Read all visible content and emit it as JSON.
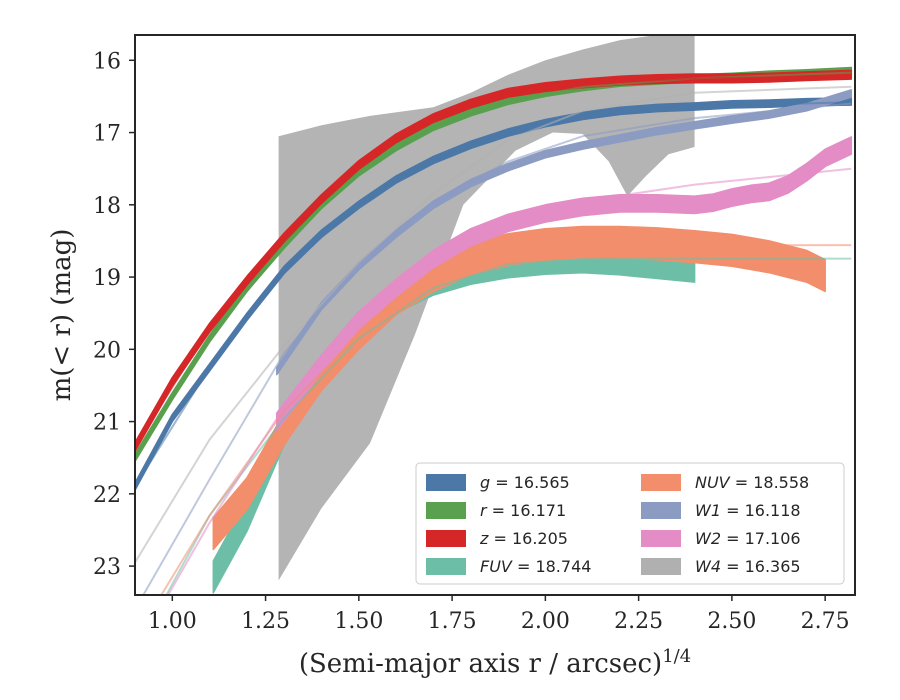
{
  "chart_data": {
    "type": "line",
    "xlabel": "(Semi-major axis r / arcsec)",
    "xlabel_sup": "1/4",
    "ylabel": "m(< r) (mag)",
    "xlim": [
      0.9,
      2.83
    ],
    "ylim": [
      23.4,
      15.65
    ],
    "y_inverted": true,
    "grid": false,
    "legend_placement": "lower-right",
    "legend_columns": 2,
    "x_ticks": [
      "1.00",
      "1.25",
      "1.50",
      "1.75",
      "2.00",
      "2.25",
      "2.50",
      "2.75"
    ],
    "y_ticks": [
      "16",
      "17",
      "18",
      "19",
      "20",
      "21",
      "22",
      "23"
    ],
    "series": [
      {
        "name": "g = 16.565",
        "label_var": "g",
        "label_val": "16.565",
        "color": "#4c78a8",
        "band_width": 0.05,
        "data": [
          [
            0.9,
            21.9
          ],
          [
            1.0,
            20.95
          ],
          [
            1.1,
            20.25
          ],
          [
            1.2,
            19.55
          ],
          [
            1.3,
            18.9
          ],
          [
            1.4,
            18.4
          ],
          [
            1.5,
            18.0
          ],
          [
            1.6,
            17.65
          ],
          [
            1.7,
            17.38
          ],
          [
            1.8,
            17.17
          ],
          [
            1.9,
            17.0
          ],
          [
            2.0,
            16.87
          ],
          [
            2.1,
            16.77
          ],
          [
            2.2,
            16.7
          ],
          [
            2.3,
            16.66
          ],
          [
            2.4,
            16.64
          ],
          [
            2.5,
            16.61
          ],
          [
            2.6,
            16.6
          ],
          [
            2.7,
            16.58
          ],
          [
            2.82,
            16.57
          ]
        ],
        "model": [
          [
            0.9,
            21.9
          ],
          [
            1.1,
            20.25
          ],
          [
            1.3,
            18.9
          ],
          [
            1.5,
            18.0
          ],
          [
            1.7,
            17.38
          ],
          [
            1.9,
            17.0
          ],
          [
            2.1,
            16.77
          ],
          [
            2.4,
            16.64
          ],
          [
            2.82,
            16.58
          ]
        ]
      },
      {
        "name": "r = 16.171",
        "label_var": "r",
        "label_val": "16.171",
        "color": "#59a14f",
        "band_width": 0.05,
        "data": [
          [
            0.9,
            21.5
          ],
          [
            1.0,
            20.65
          ],
          [
            1.1,
            19.85
          ],
          [
            1.2,
            19.15
          ],
          [
            1.3,
            18.55
          ],
          [
            1.4,
            18.0
          ],
          [
            1.5,
            17.55
          ],
          [
            1.6,
            17.2
          ],
          [
            1.7,
            16.92
          ],
          [
            1.8,
            16.72
          ],
          [
            1.9,
            16.56
          ],
          [
            2.0,
            16.45
          ],
          [
            2.1,
            16.37
          ],
          [
            2.2,
            16.31
          ],
          [
            2.3,
            16.28
          ],
          [
            2.4,
            16.25
          ],
          [
            2.5,
            16.23
          ],
          [
            2.6,
            16.2
          ],
          [
            2.7,
            16.18
          ],
          [
            2.82,
            16.15
          ]
        ],
        "model": [
          [
            0.9,
            21.5
          ],
          [
            1.1,
            19.85
          ],
          [
            1.3,
            18.55
          ],
          [
            1.5,
            17.55
          ],
          [
            1.7,
            16.92
          ],
          [
            1.9,
            16.56
          ],
          [
            2.1,
            16.37
          ],
          [
            2.4,
            16.25
          ],
          [
            2.82,
            16.17
          ]
        ]
      },
      {
        "name": "z = 16.205",
        "label_var": "z",
        "label_val": "16.205",
        "color": "#d62728",
        "band_width": 0.06,
        "data": [
          [
            0.9,
            21.35
          ],
          [
            1.0,
            20.45
          ],
          [
            1.1,
            19.7
          ],
          [
            1.2,
            19.05
          ],
          [
            1.3,
            18.45
          ],
          [
            1.4,
            17.92
          ],
          [
            1.5,
            17.45
          ],
          [
            1.6,
            17.08
          ],
          [
            1.7,
            16.8
          ],
          [
            1.8,
            16.6
          ],
          [
            1.9,
            16.45
          ],
          [
            2.0,
            16.37
          ],
          [
            2.1,
            16.32
          ],
          [
            2.2,
            16.28
          ],
          [
            2.3,
            16.26
          ],
          [
            2.4,
            16.25
          ],
          [
            2.5,
            16.25
          ],
          [
            2.6,
            16.24
          ],
          [
            2.7,
            16.22
          ],
          [
            2.82,
            16.2
          ]
        ],
        "model": [
          [
            0.9,
            21.35
          ],
          [
            1.1,
            19.7
          ],
          [
            1.3,
            18.45
          ],
          [
            1.5,
            17.45
          ],
          [
            1.7,
            16.8
          ],
          [
            1.9,
            16.45
          ],
          [
            2.1,
            16.32
          ],
          [
            2.4,
            16.25
          ],
          [
            2.82,
            16.22
          ]
        ]
      },
      {
        "name": "FUV = 18.744",
        "label_var": "FUV",
        "label_val": "18.744",
        "color": "#6cbfa6",
        "band_width": 0.22,
        "data": [
          [
            1.11,
            23.15
          ],
          [
            1.2,
            22.3
          ],
          [
            1.3,
            21.1
          ],
          [
            1.4,
            20.3
          ],
          [
            1.5,
            19.7
          ],
          [
            1.6,
            19.28
          ],
          [
            1.7,
            19.03
          ],
          [
            1.8,
            18.88
          ],
          [
            1.9,
            18.79
          ],
          [
            2.0,
            18.74
          ],
          [
            2.1,
            18.72
          ],
          [
            2.2,
            18.75
          ],
          [
            2.3,
            18.8
          ],
          [
            2.4,
            18.85
          ]
        ],
        "model": [
          [
            0.9,
            24.2
          ],
          [
            1.1,
            22.3
          ],
          [
            1.3,
            20.95
          ],
          [
            1.5,
            19.85
          ],
          [
            1.7,
            19.15
          ],
          [
            1.9,
            18.82
          ],
          [
            2.1,
            18.75
          ],
          [
            2.4,
            18.744
          ],
          [
            2.82,
            18.744
          ]
        ]
      },
      {
        "name": "NUV = 18.558",
        "label_var": "NUV",
        "label_val": "18.558",
        "color": "#f28e6b",
        "band_width": 0.22,
        "data": [
          [
            1.11,
            22.55
          ],
          [
            1.2,
            22.0
          ],
          [
            1.3,
            21.1
          ],
          [
            1.4,
            20.35
          ],
          [
            1.5,
            19.78
          ],
          [
            1.6,
            19.3
          ],
          [
            1.7,
            18.98
          ],
          [
            1.8,
            18.75
          ],
          [
            1.9,
            18.62
          ],
          [
            2.0,
            18.55
          ],
          [
            2.1,
            18.52
          ],
          [
            2.2,
            18.52
          ],
          [
            2.3,
            18.54
          ],
          [
            2.4,
            18.58
          ],
          [
            2.5,
            18.63
          ],
          [
            2.6,
            18.72
          ],
          [
            2.7,
            18.85
          ],
          [
            2.75,
            18.98
          ]
        ],
        "model": [
          [
            0.9,
            24.0
          ],
          [
            1.1,
            22.3
          ],
          [
            1.3,
            20.85
          ],
          [
            1.5,
            19.8
          ],
          [
            1.7,
            19.1
          ],
          [
            1.9,
            18.72
          ],
          [
            2.1,
            18.6
          ],
          [
            2.4,
            18.56
          ],
          [
            2.82,
            18.558
          ]
        ]
      },
      {
        "name": "W1 = 16.118",
        "label_var": "W1",
        "label_val": "16.118",
        "color": "#8c9bc2",
        "band_width": 0.05,
        "data": [
          [
            1.28,
            20.3
          ],
          [
            1.4,
            19.4
          ],
          [
            1.5,
            18.85
          ],
          [
            1.6,
            18.4
          ],
          [
            1.7,
            18.0
          ],
          [
            1.8,
            17.7
          ],
          [
            1.9,
            17.48
          ],
          [
            2.0,
            17.3
          ],
          [
            2.1,
            17.18
          ],
          [
            2.2,
            17.08
          ],
          [
            2.3,
            16.98
          ],
          [
            2.4,
            16.9
          ],
          [
            2.5,
            16.82
          ],
          [
            2.6,
            16.75
          ],
          [
            2.7,
            16.65
          ],
          [
            2.82,
            16.46
          ]
        ],
        "model": [
          [
            0.9,
            23.6
          ],
          [
            1.1,
            21.8
          ],
          [
            1.3,
            20.05
          ],
          [
            1.5,
            18.8
          ],
          [
            1.7,
            17.95
          ],
          [
            1.9,
            17.4
          ],
          [
            2.1,
            17.05
          ],
          [
            2.4,
            16.8
          ],
          [
            2.82,
            16.6
          ]
        ]
      },
      {
        "name": "W2 = 17.106",
        "label_var": "W2",
        "label_val": "17.106",
        "color": "#e38cc6",
        "band_width": 0.12,
        "data": [
          [
            1.28,
            21.0
          ],
          [
            1.4,
            20.2
          ],
          [
            1.5,
            19.6
          ],
          [
            1.6,
            19.15
          ],
          [
            1.7,
            18.75
          ],
          [
            1.8,
            18.45
          ],
          [
            1.9,
            18.25
          ],
          [
            2.0,
            18.12
          ],
          [
            2.1,
            18.03
          ],
          [
            2.2,
            17.98
          ],
          [
            2.3,
            17.98
          ],
          [
            2.4,
            18.0
          ],
          [
            2.45,
            17.97
          ],
          [
            2.5,
            17.9
          ],
          [
            2.55,
            17.85
          ],
          [
            2.6,
            17.82
          ],
          [
            2.65,
            17.72
          ],
          [
            2.7,
            17.55
          ],
          [
            2.75,
            17.35
          ],
          [
            2.82,
            17.18
          ]
        ],
        "model": [
          [
            0.9,
            24.2
          ],
          [
            1.1,
            22.4
          ],
          [
            1.3,
            20.8
          ],
          [
            1.5,
            19.6
          ],
          [
            1.7,
            18.78
          ],
          [
            1.9,
            18.25
          ],
          [
            2.1,
            17.95
          ],
          [
            2.4,
            17.72
          ],
          [
            2.82,
            17.5
          ]
        ]
      },
      {
        "name": "W4 = 16.365",
        "label_var": "W4",
        "label_val": "16.365",
        "color": "#b0b0b0",
        "band_width": 0.0,
        "band_upper": [
          [
            1.285,
            17.05
          ],
          [
            1.4,
            16.9
          ],
          [
            1.53,
            16.77
          ],
          [
            1.7,
            16.65
          ],
          [
            1.8,
            16.45
          ],
          [
            1.9,
            16.2
          ],
          [
            2.0,
            16.0
          ],
          [
            2.1,
            15.85
          ],
          [
            2.2,
            15.72
          ],
          [
            2.3,
            15.65
          ],
          [
            2.4,
            15.65
          ]
        ],
        "band_lower": [
          [
            1.285,
            23.2
          ],
          [
            1.4,
            22.2
          ],
          [
            1.53,
            21.3
          ],
          [
            1.65,
            19.8
          ],
          [
            1.78,
            18.0
          ],
          [
            1.92,
            17.25
          ],
          [
            2.02,
            17.0
          ],
          [
            2.1,
            17.02
          ],
          [
            2.17,
            17.4
          ],
          [
            2.22,
            17.88
          ],
          [
            2.27,
            17.6
          ],
          [
            2.33,
            17.3
          ],
          [
            2.4,
            17.2
          ]
        ],
        "model": [
          [
            0.9,
            22.95
          ],
          [
            1.1,
            21.25
          ],
          [
            1.3,
            19.95
          ],
          [
            1.5,
            18.8
          ],
          [
            1.7,
            17.85
          ],
          [
            1.9,
            17.1
          ],
          [
            2.1,
            16.7
          ],
          [
            2.4,
            16.45
          ],
          [
            2.82,
            16.365
          ]
        ]
      }
    ]
  }
}
